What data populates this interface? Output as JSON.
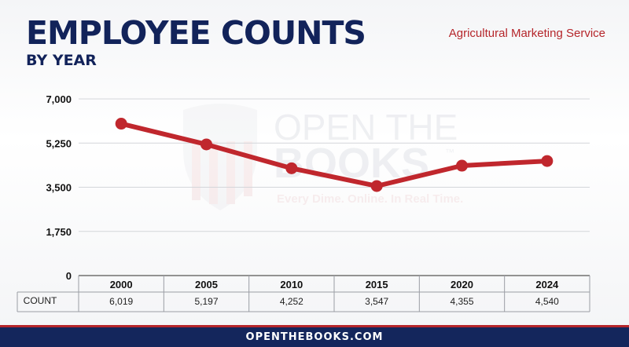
{
  "header": {
    "title": "EMPLOYEE COUNTS",
    "subtitle": "BY YEAR",
    "agency": "Agricultural Marketing Service"
  },
  "watermark": {
    "line1": "OPEN THE",
    "line2": "BOOKS",
    "tm": "™",
    "tagline": "Every Dime. Online. In Real Time."
  },
  "table": {
    "row_label": "COUNT",
    "values": [
      "6,019",
      "5,197",
      "4,252",
      "3,547",
      "4,355",
      "4,540"
    ]
  },
  "footer": {
    "text": "OPENTHEBOOKS.COM"
  },
  "colors": {
    "navy": "#12235a",
    "red": "#b5262b",
    "line": "#c0272d"
  },
  "chart_data": {
    "type": "line",
    "title": "EMPLOYEE COUNTS",
    "subtitle": "BY YEAR",
    "categories": [
      "2000",
      "2005",
      "2010",
      "2015",
      "2020",
      "2024"
    ],
    "series": [
      {
        "values": [
          6019,
          5197,
          4252,
          3547,
          4355,
          4540
        ]
      }
    ],
    "ylim": [
      0,
      7000
    ],
    "yticks": [
      0,
      1750,
      3500,
      5250,
      7000
    ],
    "ytick_labels": [
      "0",
      "1,750",
      "3,500",
      "5,250",
      "7,000"
    ],
    "grid": true
  }
}
